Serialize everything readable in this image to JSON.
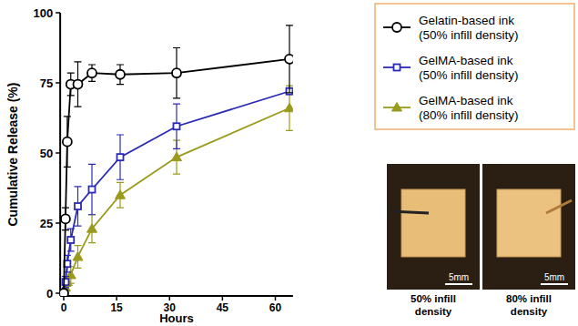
{
  "chart_data": {
    "type": "line",
    "x_label": "Hours",
    "y_label": "Cumulative Release (%)",
    "x": [
      0,
      0.5,
      1,
      2,
      4,
      8,
      16,
      32,
      64
    ],
    "xlim": [
      -1,
      65
    ],
    "xticks": [
      0,
      15,
      30,
      45,
      60
    ],
    "ylim": [
      -1,
      100
    ],
    "yticks": [
      0,
      25,
      50,
      75,
      100
    ],
    "grid": false,
    "legend": "top-right",
    "series": [
      {
        "name": "Gelatin-based ink (50% infill density)",
        "color": "#000000",
        "marker": "open-circle",
        "values": [
          0,
          26.5,
          54,
          74.5,
          74.5,
          78.5,
          78,
          78.5,
          83.5
        ],
        "errors": [
          0,
          4,
          9,
          4,
          8,
          3,
          3.5,
          9,
          12
        ]
      },
      {
        "name": "GelMA-based ink (50% infill density)",
        "color": "#2a2ab8",
        "marker": "open-square",
        "values": [
          0,
          4,
          10.5,
          19,
          31,
          37,
          48.5,
          59.5,
          72
        ],
        "errors": [
          0,
          2,
          3,
          4,
          7,
          9,
          8,
          8,
          0
        ]
      },
      {
        "name": "GelMA-based ink (80% infill density)",
        "color": "#9a9a1c",
        "marker": "triangle",
        "values": [
          0,
          2,
          4,
          6.5,
          13,
          23,
          35,
          48.5,
          66
        ],
        "errors": [
          0,
          1,
          1.5,
          3,
          4,
          5,
          4.5,
          6,
          8
        ]
      }
    ],
    "insets": [
      {
        "caption": "50% infill density",
        "scale_bar": "5mm"
      },
      {
        "caption": "80% infill density",
        "scale_bar": "5mm"
      }
    ]
  }
}
